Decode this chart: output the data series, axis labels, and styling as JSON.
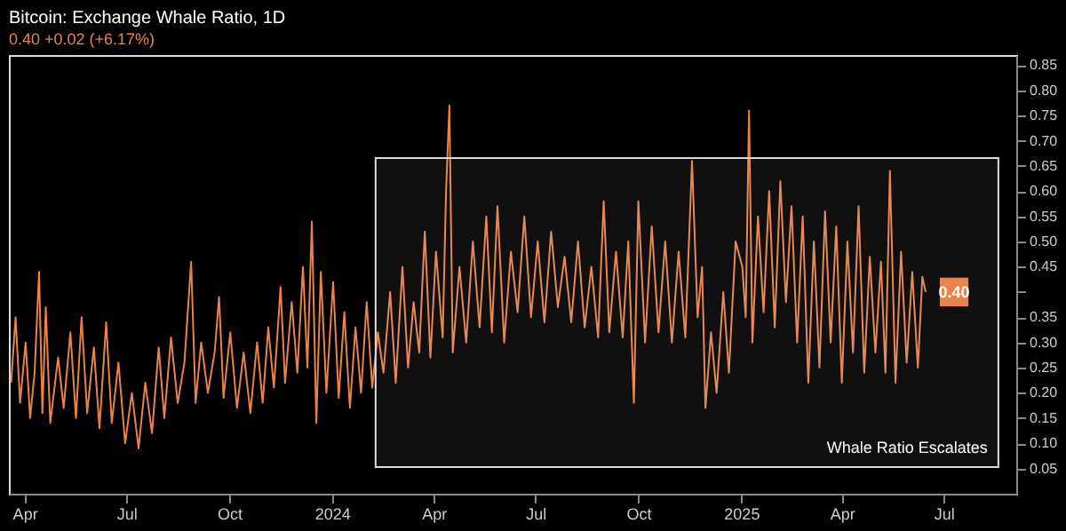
{
  "chart_data": {
    "type": "line",
    "title": "Bitcoin: Exchange Whale Ratio, 1D",
    "subtitle": "0.40 +0.02 (+6.17%)",
    "x": [
      "2023-03-20",
      "2023-03-24",
      "2023-03-28",
      "2023-04-02",
      "2023-04-06",
      "2023-04-10",
      "2023-04-14",
      "2023-04-17",
      "2023-04-20",
      "2023-04-24",
      "2023-05-01",
      "2023-05-06",
      "2023-05-12",
      "2023-05-17",
      "2023-05-22",
      "2023-05-27",
      "2023-06-02",
      "2023-06-07",
      "2023-06-13",
      "2023-06-18",
      "2023-06-24",
      "2023-06-30",
      "2023-07-06",
      "2023-07-12",
      "2023-07-18",
      "2023-07-24",
      "2023-07-30",
      "2023-08-04",
      "2023-08-10",
      "2023-08-16",
      "2023-08-22",
      "2023-08-28",
      "2023-09-01",
      "2023-09-06",
      "2023-09-12",
      "2023-09-18",
      "2023-09-22",
      "2023-09-26",
      "2023-10-02",
      "2023-10-08",
      "2023-10-14",
      "2023-10-20",
      "2023-10-26",
      "2023-10-31",
      "2023-11-05",
      "2023-11-10",
      "2023-11-16",
      "2023-11-20",
      "2023-11-26",
      "2023-12-01",
      "2023-12-06",
      "2023-12-10",
      "2023-12-14",
      "2023-12-18",
      "2023-12-22",
      "2023-12-27",
      "2024-01-02",
      "2024-01-07",
      "2024-01-12",
      "2024-01-17",
      "2024-01-22",
      "2024-01-27",
      "2024-02-01",
      "2024-02-06",
      "2024-02-11",
      "2024-02-16",
      "2024-02-22",
      "2024-02-27",
      "2024-03-04",
      "2024-03-09",
      "2024-03-14",
      "2024-03-19",
      "2024-03-24",
      "2024-03-29",
      "2024-04-03",
      "2024-04-09",
      "2024-04-12",
      "2024-04-15",
      "2024-04-18",
      "2024-04-24",
      "2024-04-30",
      "2024-05-06",
      "2024-05-12",
      "2024-05-18",
      "2024-05-23",
      "2024-05-28",
      "2024-06-03",
      "2024-06-09",
      "2024-06-15",
      "2024-06-21",
      "2024-06-27",
      "2024-07-03",
      "2024-07-09",
      "2024-07-15",
      "2024-07-21",
      "2024-07-27",
      "2024-08-02",
      "2024-08-08",
      "2024-08-14",
      "2024-08-20",
      "2024-08-26",
      "2024-08-31",
      "2024-09-05",
      "2024-09-11",
      "2024-09-17",
      "2024-09-22",
      "2024-09-27",
      "2024-10-01",
      "2024-10-07",
      "2024-10-13",
      "2024-10-19",
      "2024-10-25",
      "2024-10-31",
      "2024-11-06",
      "2024-11-12",
      "2024-11-18",
      "2024-11-23",
      "2024-11-27",
      "2024-11-30",
      "2024-12-05",
      "2024-12-10",
      "2024-12-16",
      "2024-12-21",
      "2024-12-27",
      "2025-01-02",
      "2025-01-05",
      "2025-01-08",
      "2025-01-11",
      "2025-01-16",
      "2025-01-21",
      "2025-01-26",
      "2025-01-31",
      "2025-02-05",
      "2025-02-10",
      "2025-02-15",
      "2025-02-20",
      "2025-02-25",
      "2025-03-02",
      "2025-03-07",
      "2025-03-12",
      "2025-03-17",
      "2025-03-22",
      "2025-03-27",
      "2025-04-01",
      "2025-04-06",
      "2025-04-11",
      "2025-04-16",
      "2025-04-21",
      "2025-04-26",
      "2025-05-01",
      "2025-05-06",
      "2025-05-10",
      "2025-05-14",
      "2025-05-19",
      "2025-05-24",
      "2025-05-29",
      "2025-06-03",
      "2025-06-08",
      "2025-06-12",
      "2025-06-15"
    ],
    "series": [
      {
        "color": "#e8834a",
        "values": [
          0.22,
          0.35,
          0.18,
          0.3,
          0.15,
          0.24,
          0.44,
          0.16,
          0.37,
          0.14,
          0.27,
          0.17,
          0.32,
          0.15,
          0.35,
          0.16,
          0.29,
          0.13,
          0.34,
          0.14,
          0.26,
          0.1,
          0.2,
          0.09,
          0.22,
          0.12,
          0.29,
          0.15,
          0.31,
          0.18,
          0.26,
          0.46,
          0.18,
          0.3,
          0.2,
          0.28,
          0.39,
          0.19,
          0.32,
          0.17,
          0.28,
          0.16,
          0.3,
          0.18,
          0.33,
          0.21,
          0.41,
          0.22,
          0.38,
          0.24,
          0.45,
          0.25,
          0.54,
          0.14,
          0.44,
          0.2,
          0.42,
          0.19,
          0.36,
          0.17,
          0.33,
          0.2,
          0.38,
          0.21,
          0.32,
          0.24,
          0.4,
          0.22,
          0.45,
          0.25,
          0.38,
          0.28,
          0.52,
          0.27,
          0.48,
          0.31,
          0.6,
          0.77,
          0.28,
          0.45,
          0.3,
          0.5,
          0.33,
          0.55,
          0.32,
          0.57,
          0.3,
          0.48,
          0.36,
          0.55,
          0.35,
          0.5,
          0.34,
          0.52,
          0.37,
          0.47,
          0.34,
          0.5,
          0.33,
          0.45,
          0.31,
          0.58,
          0.32,
          0.48,
          0.31,
          0.5,
          0.18,
          0.58,
          0.3,
          0.53,
          0.32,
          0.5,
          0.3,
          0.48,
          0.31,
          0.66,
          0.35,
          0.45,
          0.17,
          0.32,
          0.2,
          0.4,
          0.24,
          0.5,
          0.45,
          0.35,
          0.76,
          0.3,
          0.55,
          0.36,
          0.6,
          0.33,
          0.62,
          0.38,
          0.57,
          0.3,
          0.55,
          0.22,
          0.5,
          0.25,
          0.56,
          0.3,
          0.53,
          0.22,
          0.5,
          0.28,
          0.57,
          0.24,
          0.47,
          0.28,
          0.46,
          0.24,
          0.64,
          0.22,
          0.48,
          0.26,
          0.44,
          0.25,
          0.43,
          0.4
        ]
      }
    ],
    "xlim": [
      "2023-03-18",
      "2025-09-04"
    ],
    "xticks": [
      {
        "value": "2023-04-01",
        "label": "Apr"
      },
      {
        "value": "2023-07-01",
        "label": "Jul"
      },
      {
        "value": "2023-10-01",
        "label": "Oct"
      },
      {
        "value": "2024-01-01",
        "label": "2024"
      },
      {
        "value": "2024-04-01",
        "label": "Apr"
      },
      {
        "value": "2024-07-01",
        "label": "Jul"
      },
      {
        "value": "2024-10-01",
        "label": "Oct"
      },
      {
        "value": "2025-01-01",
        "label": "2025"
      },
      {
        "value": "2025-04-01",
        "label": "Apr"
      },
      {
        "value": "2025-07-01",
        "label": "Jul"
      }
    ],
    "ylim": [
      0,
      0.87
    ],
    "yticks": [
      0.05,
      {
        "value": 0.1,
        "label": "0.10"
      },
      0.15,
      {
        "value": 0.2,
        "label": "0.20"
      },
      0.25,
      {
        "value": 0.3,
        "label": "0.30"
      },
      0.35,
      {
        "value": 0.4,
        "label": null
      },
      0.45,
      {
        "value": 0.5,
        "label": "0.50"
      },
      0.55,
      {
        "value": 0.6,
        "label": "0.60"
      },
      0.65,
      {
        "value": 0.7,
        "label": "0.70"
      },
      0.75,
      {
        "value": 0.8,
        "label": "0.80"
      },
      0.85
    ],
    "grid": false,
    "bands": [
      {
        "axis": "x",
        "from": "2024-02-09",
        "to": "2025-08-19",
        "label": "Whale Ratio Escalates",
        "color": "#dddddd"
      }
    ],
    "annotations": [
      {
        "text": "0.40",
        "x": "2025-06-15",
        "y": 0.4
      }
    ]
  }
}
